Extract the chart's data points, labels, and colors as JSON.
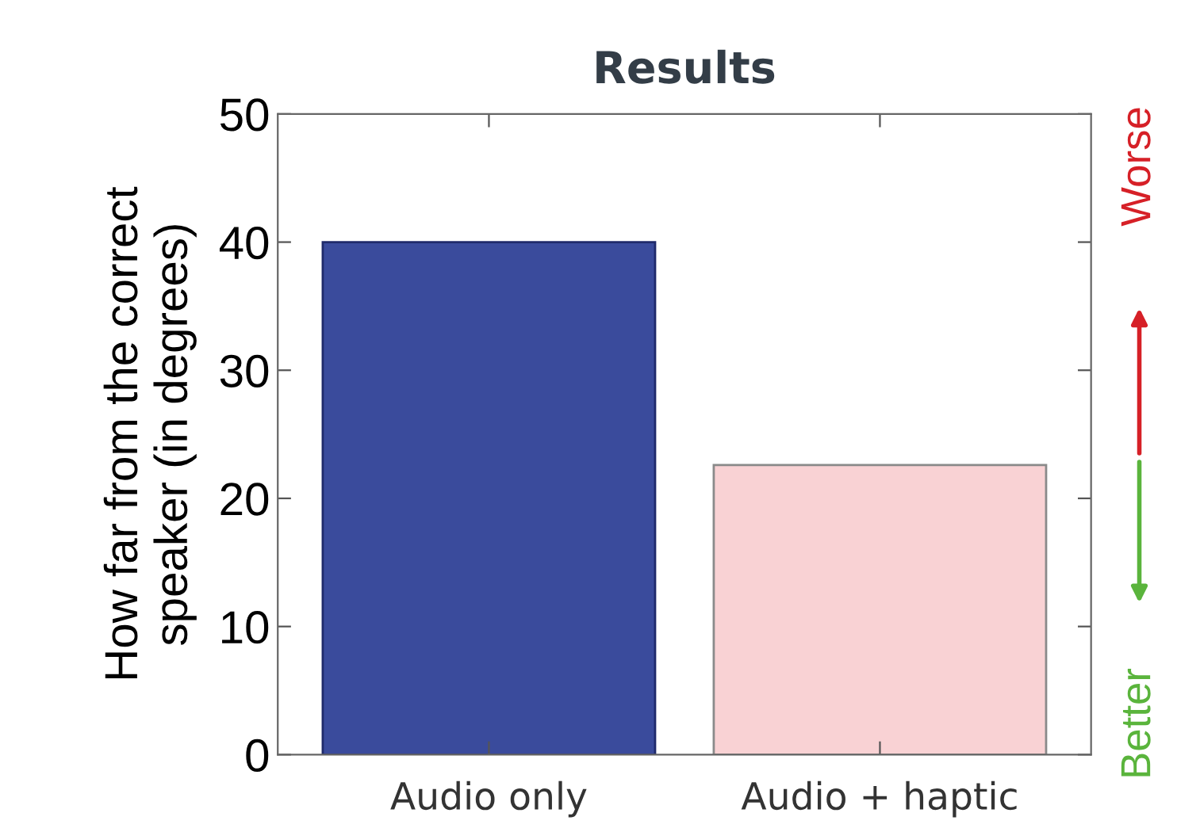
{
  "chart_data": {
    "type": "bar",
    "title": "Results",
    "ylabel": "How far from the correct\nspeaker (in degrees)",
    "categories": [
      "Audio only",
      "Audio + haptic"
    ],
    "values": [
      40,
      22.6
    ],
    "colors": [
      "#3a4b9c",
      "#f9d2d4"
    ],
    "ylim": [
      0,
      50
    ],
    "yticks": [
      0,
      10,
      20,
      30,
      40,
      50
    ],
    "annotations": [
      "Worse",
      "Better"
    ],
    "grid": false
  }
}
